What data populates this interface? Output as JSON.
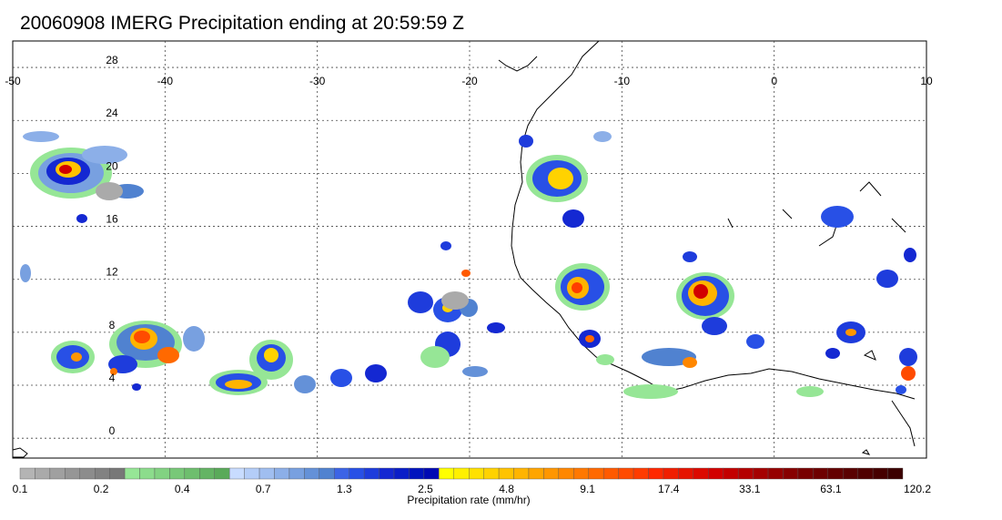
{
  "title": "20060908 IMERG Precipitation ending at 20:59:59 Z",
  "map": {
    "lon_range": [
      -50,
      10
    ],
    "lat_range": [
      -1.5,
      30
    ],
    "lon_ticks": [
      {
        "value": -50,
        "label": "-50"
      },
      {
        "value": -40,
        "label": "-40"
      },
      {
        "value": -30,
        "label": "-30"
      },
      {
        "value": -20,
        "label": "-20"
      },
      {
        "value": -10,
        "label": "-10"
      },
      {
        "value": 0,
        "label": "0"
      },
      {
        "value": 10,
        "label": "10"
      }
    ],
    "lat_ticks": [
      {
        "value": 0,
        "label": "0"
      },
      {
        "value": 4,
        "label": "4"
      },
      {
        "value": 8,
        "label": "8"
      },
      {
        "value": 12,
        "label": "12"
      },
      {
        "value": 16,
        "label": "16"
      },
      {
        "value": 20,
        "label": "20"
      },
      {
        "value": 24,
        "label": "24"
      },
      {
        "value": 28,
        "label": "28"
      }
    ],
    "gridlines": true
  },
  "colorbar": {
    "label": "Precipitation rate (mm/hr)",
    "tick_labels": [
      "0.1",
      "0.2",
      "0.4",
      "0.7",
      "1.3",
      "2.5",
      "4.8",
      "9.1",
      "17.4",
      "33.1",
      "63.1",
      "120.2"
    ],
    "colors": [
      "#b4b4b4",
      "#aaaaaa",
      "#a0a0a0",
      "#969696",
      "#8c8c8c",
      "#828282",
      "#787878",
      "#96e696",
      "#8cdc8c",
      "#82d282",
      "#78c878",
      "#6ebe6e",
      "#64b464",
      "#5aaa5a",
      "#c8dcff",
      "#b4cdf8",
      "#a0bef0",
      "#8cafe8",
      "#78a0e0",
      "#6491d8",
      "#5082d0",
      "#3c64e6",
      "#2850e6",
      "#1e3cdc",
      "#1428d2",
      "#0a1ec8",
      "#0014be",
      "#000ab4",
      "#ffff00",
      "#fff000",
      "#ffe100",
      "#ffd200",
      "#ffc300",
      "#ffb400",
      "#ffa500",
      "#ff9600",
      "#ff8700",
      "#ff7800",
      "#ff6900",
      "#ff5a00",
      "#ff4b00",
      "#ff3c00",
      "#ff2800",
      "#f01e00",
      "#e61400",
      "#dc0a00",
      "#d20000",
      "#c30000",
      "#b40000",
      "#a50000",
      "#960000",
      "#870000",
      "#780000",
      "#6e0000",
      "#640000",
      "#5a0000",
      "#500000",
      "#460000",
      "#3c0000"
    ]
  }
}
